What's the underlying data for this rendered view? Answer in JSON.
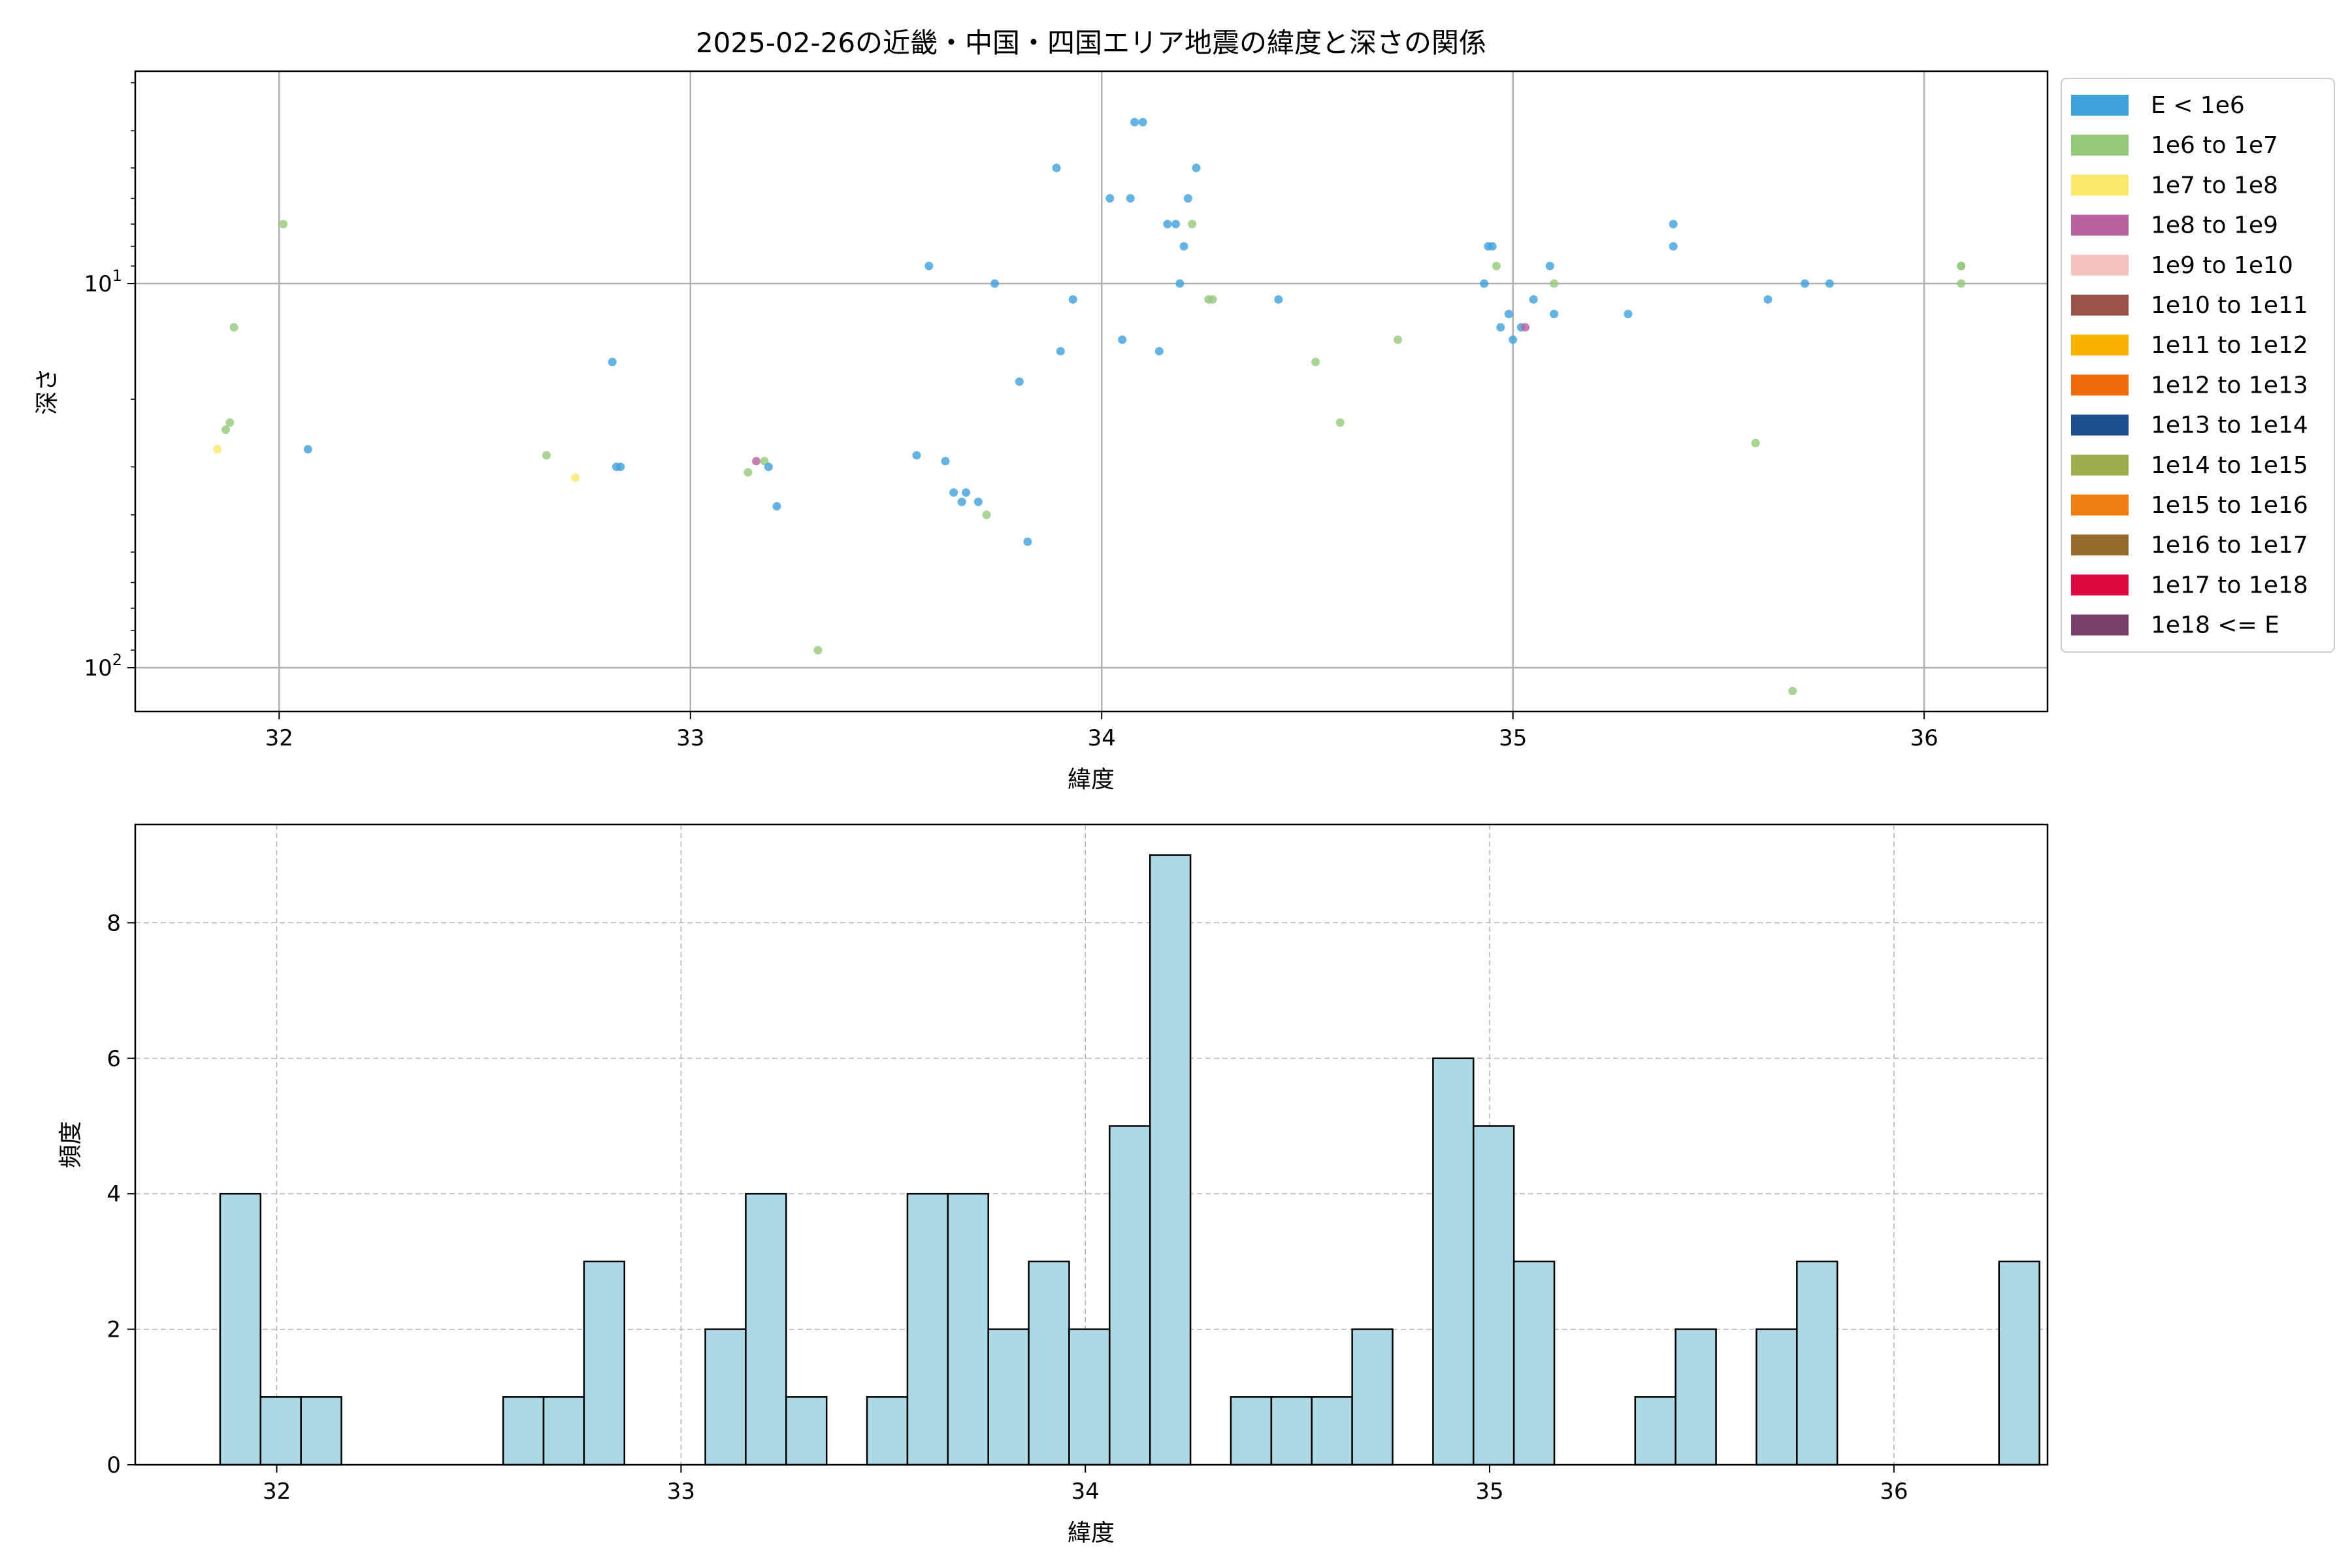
{
  "chart_data": [
    {
      "type": "scatter",
      "title": "2025-02-26の近畿・中国・四国エリア地震の緯度と深さの関係",
      "xlabel": "緯度",
      "ylabel": "深さ",
      "xlim": [
        31.65,
        36.3
      ],
      "ylim": [
        130,
        2.8
      ],
      "yscale": "log",
      "y_inverted": true,
      "grid": true,
      "x_ticks": [
        32,
        33,
        34,
        35,
        36
      ],
      "y_ticks": [
        {
          "value": 10,
          "base": "10",
          "exp": "1"
        },
        {
          "value": 100,
          "base": "10",
          "exp": "2"
        }
      ],
      "legend": {
        "placement": "outside-right",
        "entries": [
          {
            "label": "E < 1e6",
            "color": "#3fa0dc"
          },
          {
            "label": "1e6 to 1e7",
            "color": "#95c97a"
          },
          {
            "label": "1e7 to 1e8",
            "color": "#fce96a"
          },
          {
            "label": "1e8 to 1e9",
            "color": "#b8629f"
          },
          {
            "label": "1e9 to 1e10",
            "color": "#f5c2bd"
          },
          {
            "label": "1e10 to 1e11",
            "color": "#9a5248"
          },
          {
            "label": "1e11 to 1e12",
            "color": "#f8b400"
          },
          {
            "label": "1e12 to 1e13",
            "color": "#ee6a0c"
          },
          {
            "label": "1e13 to 1e14",
            "color": "#1d4c8f"
          },
          {
            "label": "1e14 to 1e15",
            "color": "#9ead4d"
          },
          {
            "label": "1e15 to 1e16",
            "color": "#ef7d10"
          },
          {
            "label": "1e16 to 1e17",
            "color": "#96692c"
          },
          {
            "label": "1e17 to 1e18",
            "color": "#d9083e"
          },
          {
            "label": "1e18 <= E",
            "color": "#77406b"
          }
        ]
      },
      "points": [
        [
          31.85,
          27,
          2
        ],
        [
          31.87,
          24,
          1
        ],
        [
          31.88,
          23,
          1
        ],
        [
          31.89,
          13,
          1
        ],
        [
          32.01,
          7,
          1
        ],
        [
          32.07,
          27,
          0
        ],
        [
          32.65,
          28,
          1
        ],
        [
          32.72,
          32,
          2
        ],
        [
          32.81,
          16,
          0
        ],
        [
          32.82,
          30,
          0
        ],
        [
          32.83,
          30,
          0
        ],
        [
          33.14,
          31,
          1
        ],
        [
          33.16,
          29,
          3
        ],
        [
          33.18,
          29,
          1
        ],
        [
          33.19,
          30,
          0
        ],
        [
          33.21,
          38,
          0
        ],
        [
          33.31,
          90,
          1
        ],
        [
          33.55,
          28,
          0
        ],
        [
          33.58,
          9,
          0
        ],
        [
          33.62,
          29,
          0
        ],
        [
          33.64,
          35,
          0
        ],
        [
          33.66,
          37,
          0
        ],
        [
          33.67,
          35,
          0
        ],
        [
          33.7,
          37,
          0
        ],
        [
          33.72,
          40,
          1
        ],
        [
          33.74,
          10,
          0
        ],
        [
          33.8,
          18,
          0
        ],
        [
          33.82,
          47,
          0
        ],
        [
          33.89,
          5,
          0
        ],
        [
          33.9,
          15,
          0
        ],
        [
          33.93,
          11,
          0
        ],
        [
          34.02,
          6,
          0
        ],
        [
          34.05,
          14,
          0
        ],
        [
          34.07,
          6,
          0
        ],
        [
          34.08,
          3.8,
          0
        ],
        [
          34.1,
          3.8,
          0
        ],
        [
          34.14,
          15,
          0
        ],
        [
          34.16,
          7,
          0
        ],
        [
          34.18,
          7,
          0
        ],
        [
          34.19,
          10,
          0
        ],
        [
          34.2,
          8,
          0
        ],
        [
          34.21,
          6,
          0
        ],
        [
          34.22,
          7,
          1
        ],
        [
          34.23,
          5,
          0
        ],
        [
          34.26,
          11,
          1
        ],
        [
          34.27,
          11,
          1
        ],
        [
          34.43,
          11,
          0
        ],
        [
          34.52,
          16,
          1
        ],
        [
          34.58,
          23,
          1
        ],
        [
          34.72,
          14,
          1
        ],
        [
          34.93,
          10,
          0
        ],
        [
          34.94,
          8,
          0
        ],
        [
          34.95,
          8,
          0
        ],
        [
          34.96,
          9,
          1
        ],
        [
          34.97,
          13,
          0
        ],
        [
          34.99,
          12,
          0
        ],
        [
          35.0,
          14,
          0
        ],
        [
          35.02,
          13,
          0
        ],
        [
          35.03,
          13,
          3
        ],
        [
          35.05,
          11,
          0
        ],
        [
          35.09,
          9,
          0
        ],
        [
          35.1,
          10,
          1
        ],
        [
          35.1,
          12,
          0
        ],
        [
          35.28,
          12,
          0
        ],
        [
          35.39,
          7,
          0
        ],
        [
          35.39,
          8,
          0
        ],
        [
          35.59,
          26,
          1
        ],
        [
          35.62,
          11,
          0
        ],
        [
          35.68,
          115,
          1
        ],
        [
          35.71,
          10,
          0
        ],
        [
          35.77,
          10,
          0
        ],
        [
          36.09,
          9,
          1
        ],
        [
          36.09,
          9,
          1
        ],
        [
          36.09,
          10,
          1
        ]
      ]
    },
    {
      "type": "bar",
      "xlabel": "緯度",
      "ylabel": "頻度",
      "xlim": [
        31.65,
        36.38
      ],
      "ylim": [
        0,
        9.45
      ],
      "grid": true,
      "x_ticks": [
        32,
        33,
        34,
        35,
        36
      ],
      "y_ticks": [
        0,
        2,
        4,
        6,
        8
      ],
      "bar_color": "#add8e6",
      "edge_color": "#000000",
      "bin_start": 31.86,
      "bin_width": 0.1,
      "values": [
        4,
        1,
        1,
        0,
        0,
        0,
        0,
        1,
        1,
        3,
        0,
        0,
        2,
        4,
        1,
        0,
        1,
        4,
        4,
        2,
        3,
        2,
        5,
        9,
        0,
        1,
        1,
        1,
        2,
        0,
        6,
        5,
        3,
        0,
        0,
        1,
        2,
        0,
        2,
        3,
        0,
        0,
        0,
        0,
        3
      ]
    }
  ]
}
